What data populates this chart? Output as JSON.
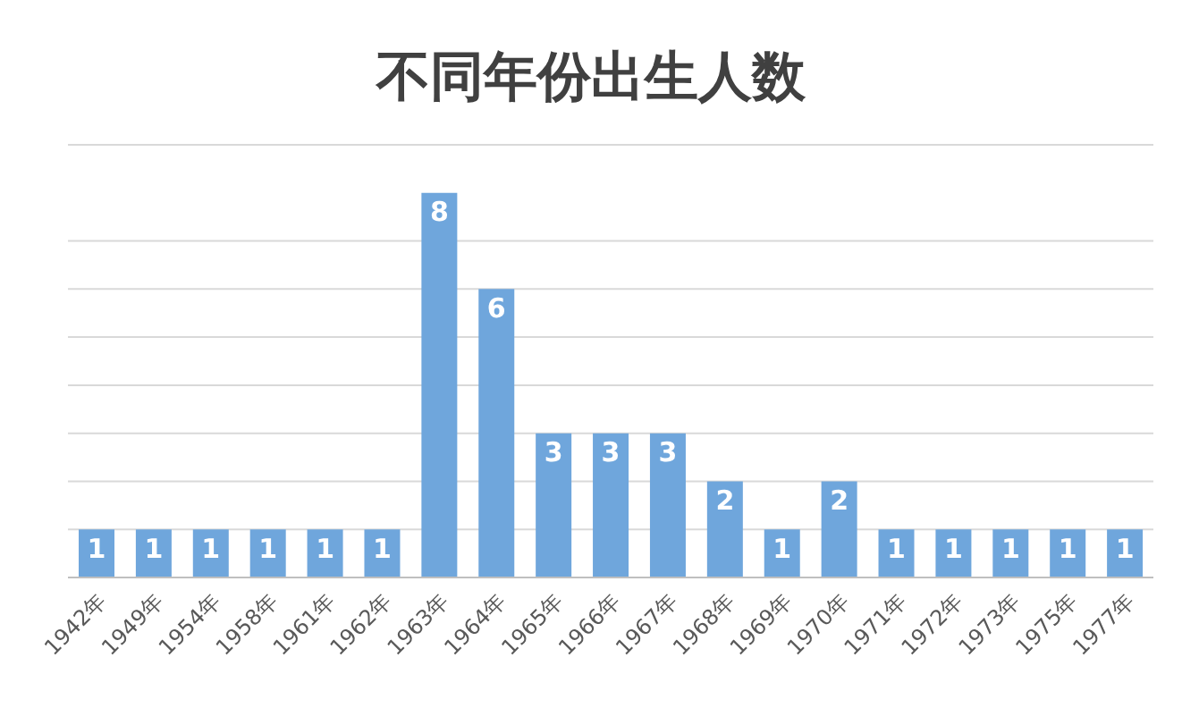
{
  "chart_data": {
    "type": "bar",
    "title": "不同年份出生人数",
    "categories": [
      "1942年",
      "1949年",
      "1954年",
      "1958年",
      "1961年",
      "1962年",
      "1963年",
      "1964年",
      "1965年",
      "1966年",
      "1967年",
      "1968年",
      "1969年",
      "1970年",
      "1971年",
      "1972年",
      "1973年",
      "1975年",
      "1977年"
    ],
    "values": [
      1,
      1,
      1,
      1,
      1,
      1,
      8,
      6,
      3,
      3,
      3,
      2,
      1,
      2,
      1,
      1,
      1,
      1,
      1
    ],
    "color": "#6fa6dc",
    "ylim": [
      0,
      9
    ],
    "grid": "y",
    "tick_labels": "x",
    "data_labels": true,
    "legend": false
  }
}
